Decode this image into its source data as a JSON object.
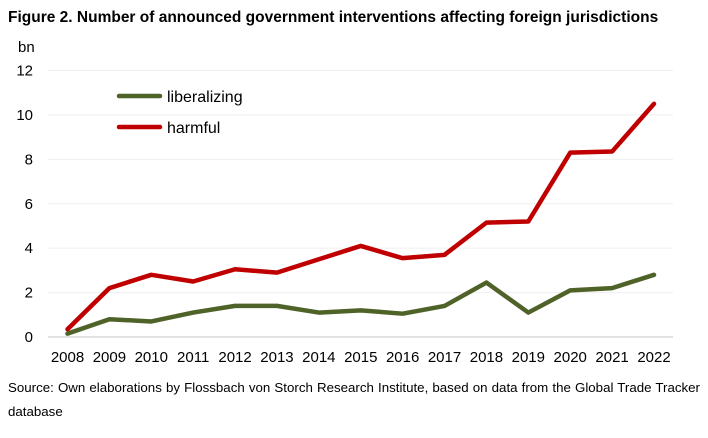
{
  "chart_data": {
    "type": "line",
    "title": "Figure 2. Number of announced government interventions affecting foreign jurisdictions",
    "ylabel": "bn",
    "xlabel": "",
    "ylim": [
      0,
      12
    ],
    "yticks": [
      "0",
      "2",
      "4",
      "6",
      "8",
      "10",
      "12"
    ],
    "grid": true,
    "legend_position": "top-left",
    "categories": [
      "2008",
      "2009",
      "2010",
      "2011",
      "2012",
      "2013",
      "2014",
      "2015",
      "2016",
      "2017",
      "2018",
      "2019",
      "2020",
      "2021",
      "2022"
    ],
    "series": [
      {
        "name": "liberalizing",
        "color": "#4f6228",
        "values": [
          0.15,
          0.8,
          0.7,
          1.1,
          1.4,
          1.4,
          1.1,
          1.2,
          1.05,
          1.4,
          2.45,
          1.1,
          2.1,
          2.2,
          2.8
        ]
      },
      {
        "name": "harmful",
        "color": "#c00000",
        "values": [
          0.35,
          2.2,
          2.8,
          2.5,
          3.05,
          2.9,
          3.5,
          4.1,
          3.55,
          3.7,
          5.15,
          5.2,
          8.3,
          8.35,
          10.5
        ]
      }
    ],
    "source": "Source: Own elaborations by Flossbach von Storch Research Institute, based on data from the Global Trade Tracker database"
  }
}
